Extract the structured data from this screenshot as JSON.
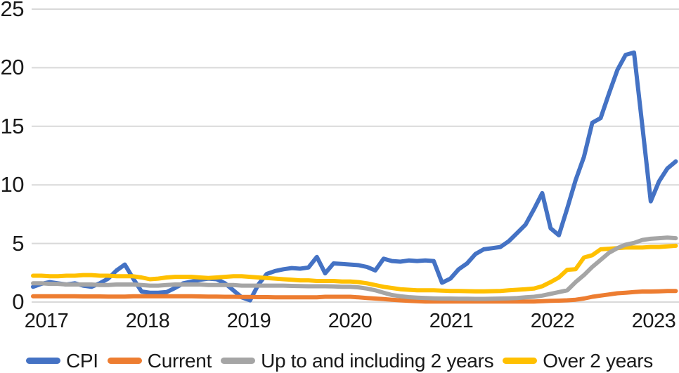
{
  "chart_data": {
    "type": "line",
    "title": "",
    "grid": "horizontal",
    "x_axis": {
      "tick_labels": [
        "2017",
        "2018",
        "2019",
        "2020",
        "2021",
        "2022",
        "2023"
      ],
      "start": "2017-01",
      "frequency": "monthly"
    },
    "y_axis": {
      "tick_labels": [
        "0",
        "5",
        "10",
        "15",
        "20",
        "25"
      ],
      "tick_values": [
        0,
        5,
        10,
        15,
        20,
        25
      ],
      "ylim": [
        0,
        25
      ]
    },
    "legend": {
      "position": "bottom",
      "items": [
        "CPI",
        "Current",
        "Up to and including 2 years",
        "Over 2 years"
      ]
    },
    "colors": {
      "cpi": "#4472C4",
      "current": "#ED7D31",
      "up_to_2_years": "#A5A5A5",
      "over_2_years": "#FFC000",
      "gridline": "#D9D9D9",
      "text": "#191919"
    },
    "series": [
      {
        "name": "CPI",
        "color": "#4472C4",
        "values": [
          1.3,
          1.55,
          1.7,
          1.6,
          1.5,
          1.6,
          1.4,
          1.3,
          1.6,
          2.0,
          2.7,
          3.2,
          2.0,
          0.9,
          0.8,
          0.8,
          0.85,
          1.2,
          1.6,
          1.75,
          1.9,
          2.0,
          1.95,
          1.6,
          1.0,
          0.4,
          0.15,
          1.5,
          2.4,
          2.65,
          2.8,
          2.9,
          2.85,
          2.95,
          3.85,
          2.45,
          3.3,
          3.25,
          3.2,
          3.15,
          3.0,
          2.7,
          3.7,
          3.5,
          3.45,
          3.55,
          3.5,
          3.55,
          3.5,
          1.65,
          2.0,
          2.8,
          3.3,
          4.1,
          4.5,
          4.6,
          4.7,
          5.2,
          5.9,
          6.6,
          7.9,
          9.3,
          6.3,
          5.7,
          8.0,
          10.4,
          12.4,
          15.3,
          15.7,
          17.8,
          19.8,
          21.1,
          21.3,
          15.0,
          8.6,
          10.3,
          11.4,
          12.0
        ]
      },
      {
        "name": "Current",
        "color": "#ED7D31",
        "values": [
          0.5,
          0.5,
          0.5,
          0.5,
          0.5,
          0.5,
          0.48,
          0.48,
          0.48,
          0.47,
          0.47,
          0.47,
          0.5,
          0.5,
          0.5,
          0.5,
          0.5,
          0.5,
          0.5,
          0.5,
          0.48,
          0.47,
          0.46,
          0.45,
          0.45,
          0.44,
          0.43,
          0.42,
          0.42,
          0.41,
          0.4,
          0.4,
          0.4,
          0.4,
          0.4,
          0.45,
          0.45,
          0.45,
          0.45,
          0.4,
          0.35,
          0.3,
          0.25,
          0.2,
          0.15,
          0.1,
          0.07,
          0.05,
          0.05,
          0.05,
          0.05,
          0.05,
          0.05,
          0.05,
          0.05,
          0.05,
          0.05,
          0.05,
          0.05,
          0.05,
          0.05,
          0.07,
          0.1,
          0.12,
          0.15,
          0.2,
          0.3,
          0.45,
          0.55,
          0.65,
          0.75,
          0.8,
          0.85,
          0.9,
          0.9,
          0.92,
          0.95,
          0.95
        ]
      },
      {
        "name": "Up to and including 2 years",
        "color": "#A5A5A5",
        "values": [
          1.6,
          1.6,
          1.55,
          1.55,
          1.5,
          1.5,
          1.5,
          1.5,
          1.45,
          1.45,
          1.5,
          1.5,
          1.5,
          1.45,
          1.4,
          1.4,
          1.45,
          1.5,
          1.5,
          1.5,
          1.5,
          1.45,
          1.45,
          1.45,
          1.45,
          1.4,
          1.4,
          1.4,
          1.4,
          1.4,
          1.4,
          1.38,
          1.36,
          1.35,
          1.35,
          1.35,
          1.33,
          1.3,
          1.3,
          1.25,
          1.15,
          1.0,
          0.8,
          0.6,
          0.5,
          0.42,
          0.38,
          0.35,
          0.32,
          0.3,
          0.3,
          0.28,
          0.28,
          0.27,
          0.27,
          0.28,
          0.3,
          0.32,
          0.35,
          0.4,
          0.45,
          0.55,
          0.7,
          0.85,
          1.0,
          1.7,
          2.3,
          3.0,
          3.6,
          4.2,
          4.6,
          4.9,
          5.05,
          5.3,
          5.4,
          5.45,
          5.5,
          5.45
        ]
      },
      {
        "name": "Over 2 years",
        "color": "#FFC000",
        "values": [
          2.25,
          2.25,
          2.2,
          2.2,
          2.25,
          2.25,
          2.3,
          2.3,
          2.25,
          2.25,
          2.2,
          2.2,
          2.2,
          2.1,
          1.95,
          2.0,
          2.1,
          2.15,
          2.15,
          2.15,
          2.1,
          2.05,
          2.1,
          2.15,
          2.2,
          2.2,
          2.15,
          2.1,
          2.05,
          2.0,
          1.95,
          1.9,
          1.85,
          1.85,
          1.8,
          1.8,
          1.8,
          1.75,
          1.75,
          1.7,
          1.6,
          1.45,
          1.3,
          1.2,
          1.1,
          1.05,
          1.0,
          1.0,
          1.0,
          0.98,
          0.95,
          0.95,
          0.93,
          0.92,
          0.92,
          0.93,
          0.95,
          1.0,
          1.05,
          1.1,
          1.15,
          1.35,
          1.7,
          2.1,
          2.75,
          2.8,
          3.8,
          4.0,
          4.5,
          4.55,
          4.6,
          4.65,
          4.65,
          4.65,
          4.7,
          4.7,
          4.75,
          4.8
        ]
      }
    ]
  }
}
